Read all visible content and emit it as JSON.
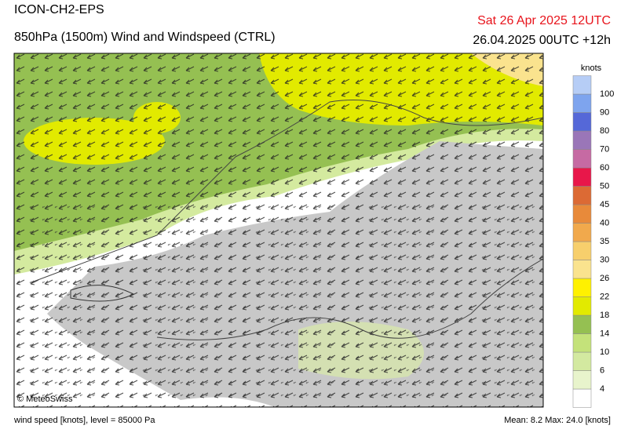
{
  "header": {
    "model": "ICON-CH2-EPS",
    "product": "850hPa (1500m) Wind and Windspeed (CTRL)",
    "valid_time": "Sat 26 Apr 2025 12UTC",
    "run_time": "26.04.2025 00UTC +12h"
  },
  "map": {
    "credit": "© MeteoSwiss"
  },
  "colorbar": {
    "title": "knots",
    "levels": [
      4,
      6,
      10,
      14,
      18,
      22,
      26,
      30,
      35,
      40,
      45,
      50,
      60,
      70,
      80,
      90,
      100
    ],
    "colors": [
      "#ffffff",
      "#e8f4cc",
      "#d3e9a0",
      "#c4e27a",
      "#95c052",
      "#e2ea00",
      "#fff100",
      "#fae38e",
      "#f7cf6c",
      "#f1a94c",
      "#e88a3a",
      "#dc6a34",
      "#e8174a",
      "#c66aa3",
      "#9a76b8",
      "#5568d8",
      "#7ea4ee",
      "#b6cdf6"
    ]
  },
  "footer": {
    "description": "wind speed [knots], level = 85000 Pa",
    "stats": "Mean:   8.2  Max:  24.0 [knots]"
  }
}
